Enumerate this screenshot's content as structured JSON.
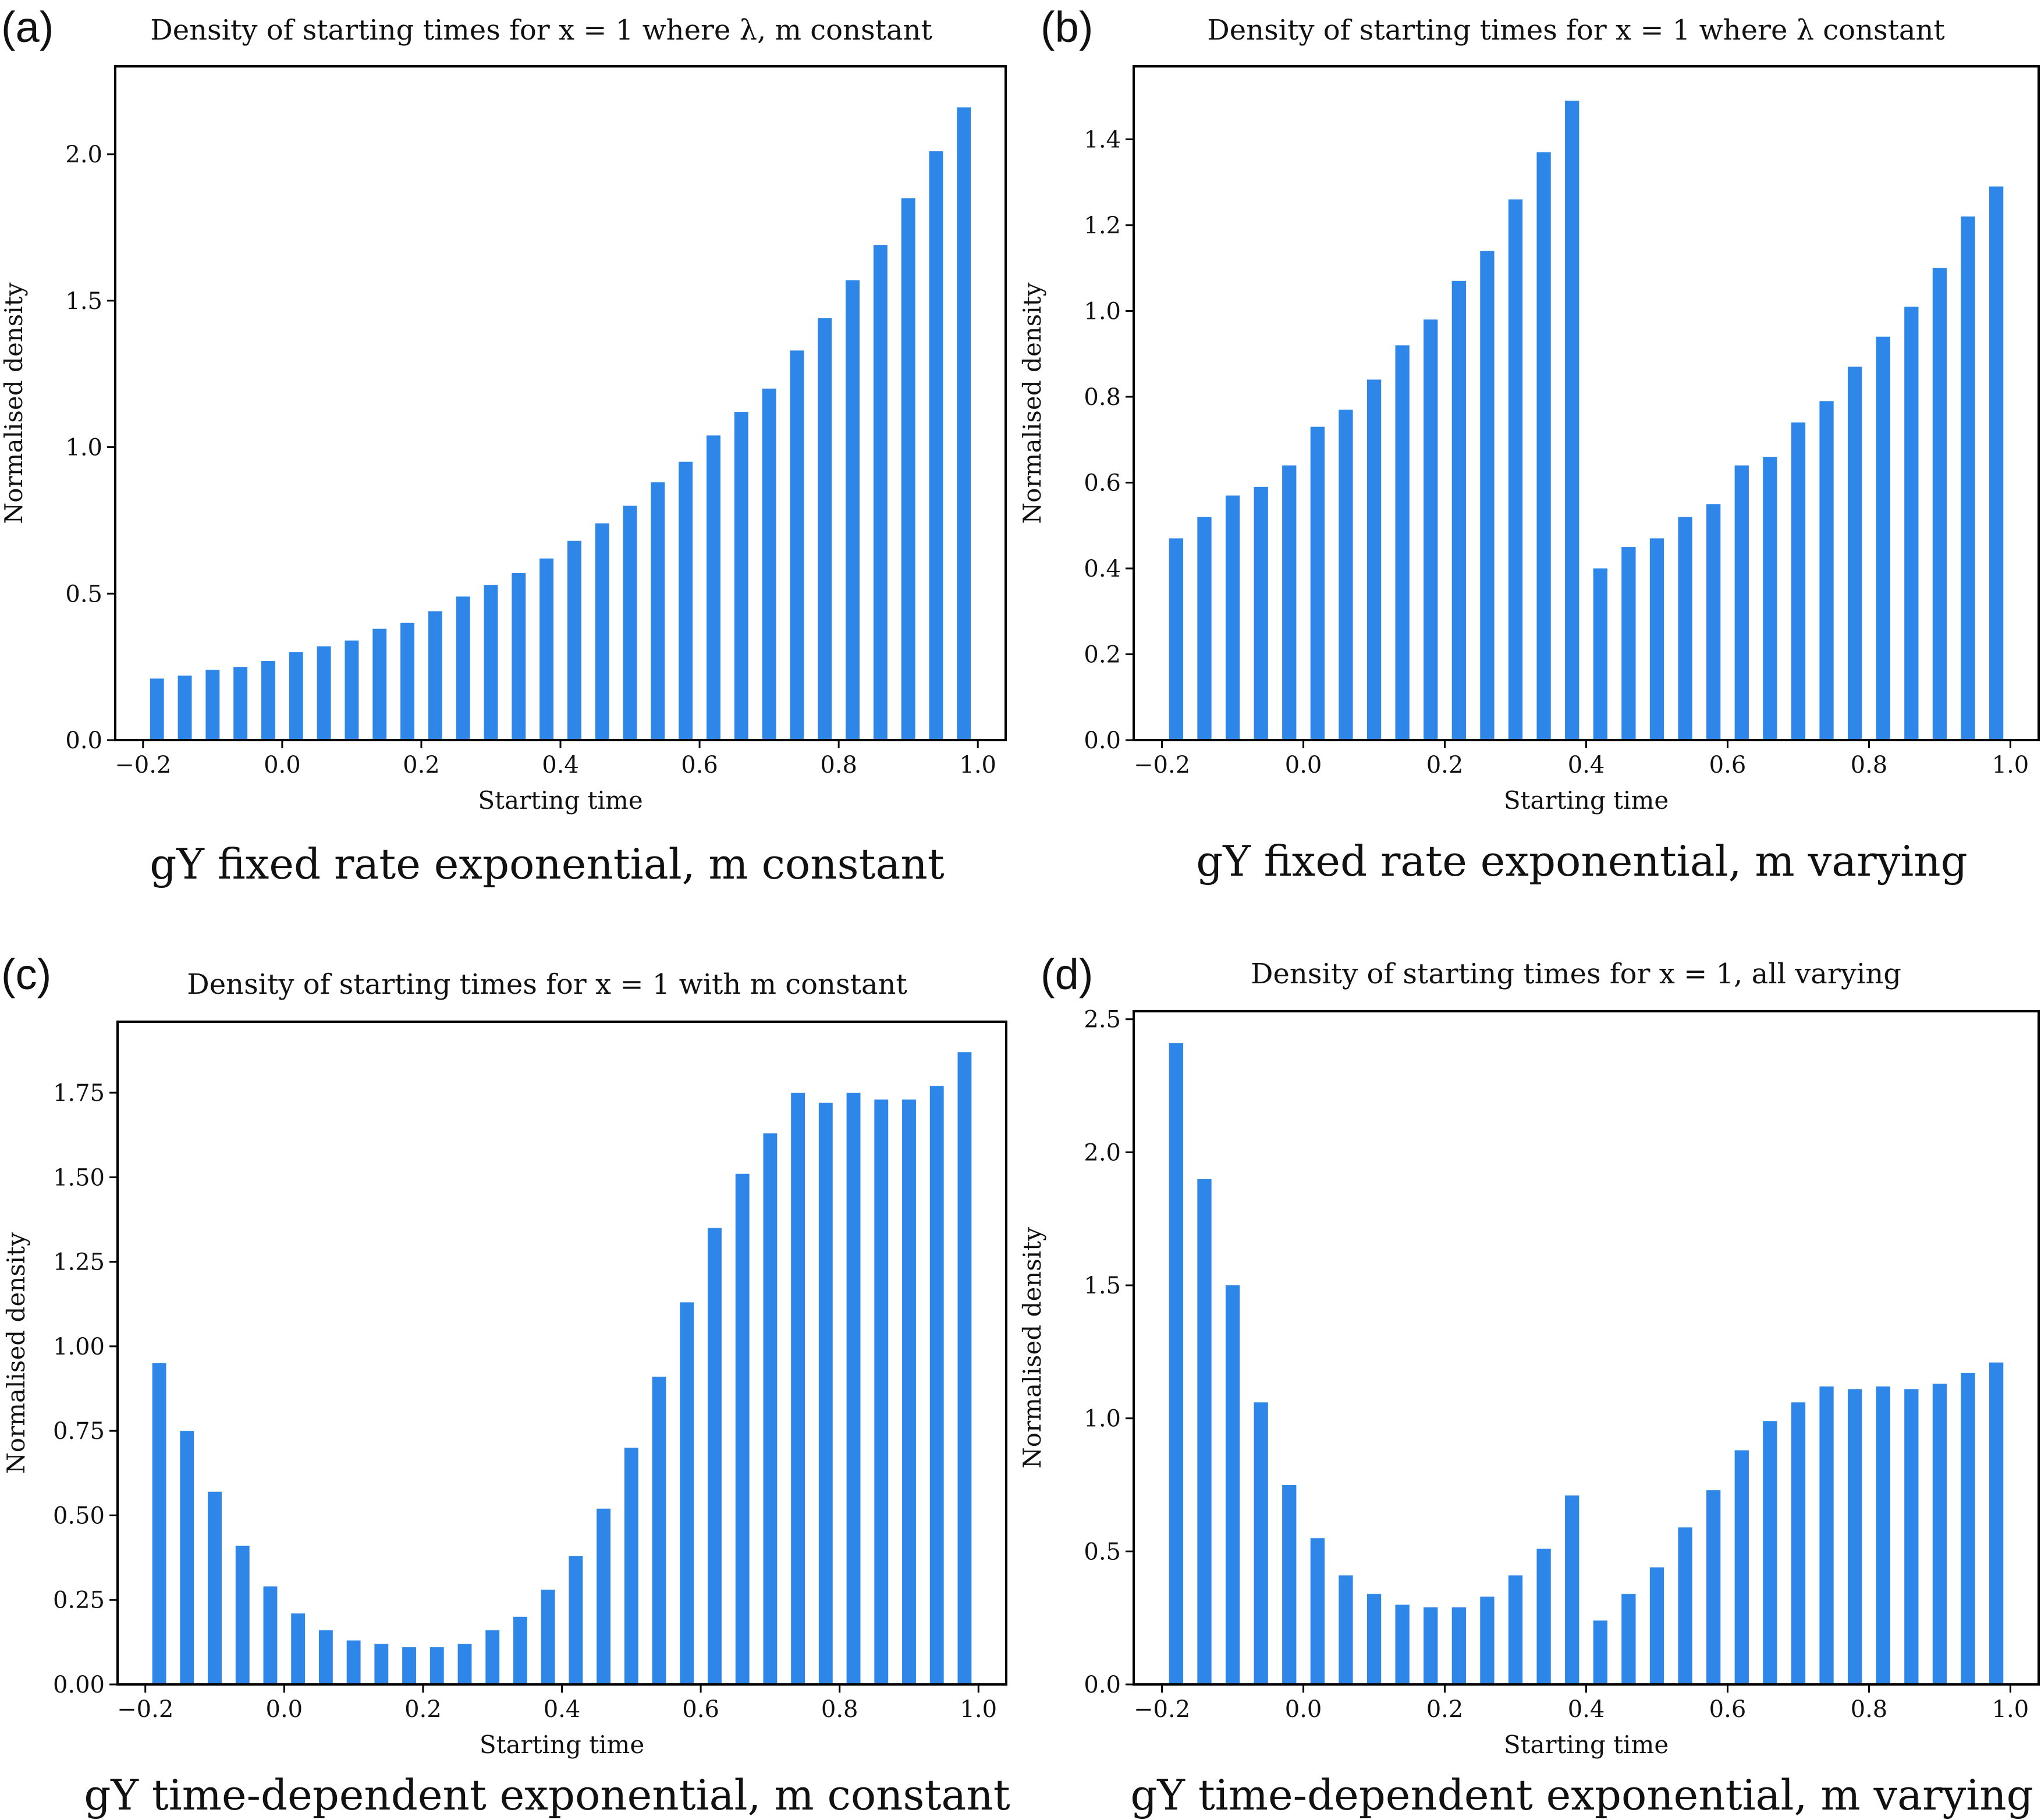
{
  "bar_color": "#2e86e8",
  "chart_data": [
    {
      "type": "bar",
      "panel_label": "(a)",
      "title": "Density of starting times for x = 1 where λ, m constant",
      "caption": "gY fixed rate exponential, m constant",
      "xlabel": "Starting time",
      "ylabel": "Normalised density",
      "xlim": [
        -0.24,
        1.04
      ],
      "ylim": [
        0,
        2.3
      ],
      "xticks": [
        -0.2,
        0.0,
        0.2,
        0.4,
        0.6,
        0.8,
        1.0
      ],
      "xtick_labels": [
        "−0.2",
        "0.0",
        "0.2",
        "0.4",
        "0.6",
        "0.8",
        "1.0"
      ],
      "yticks": [
        0.0,
        0.5,
        1.0,
        1.5,
        2.0
      ],
      "ytick_labels": [
        "0.0",
        "0.5",
        "1.0",
        "1.5",
        "2.0"
      ],
      "x": [
        -0.18,
        -0.14,
        -0.1,
        -0.06,
        -0.02,
        0.02,
        0.06,
        0.1,
        0.14,
        0.18,
        0.22,
        0.26,
        0.3,
        0.34,
        0.38,
        0.42,
        0.46,
        0.5,
        0.54,
        0.58,
        0.62,
        0.66,
        0.7,
        0.74,
        0.78,
        0.82,
        0.86,
        0.9,
        0.94,
        0.98
      ],
      "values": [
        0.21,
        0.22,
        0.24,
        0.25,
        0.27,
        0.3,
        0.32,
        0.34,
        0.38,
        0.4,
        0.44,
        0.49,
        0.53,
        0.57,
        0.62,
        0.68,
        0.74,
        0.8,
        0.88,
        0.95,
        1.04,
        1.12,
        1.2,
        1.33,
        1.44,
        1.57,
        1.69,
        1.85,
        2.01,
        2.16
      ]
    },
    {
      "type": "bar",
      "panel_label": "(b)",
      "title": "Density of starting times for x = 1 where λ constant",
      "caption": "gY fixed rate exponential, m varying",
      "xlabel": "Starting time",
      "ylabel": "Normalised density",
      "xlim": [
        -0.24,
        1.04
      ],
      "ylim": [
        0,
        1.57
      ],
      "xticks": [
        -0.2,
        0.0,
        0.2,
        0.4,
        0.6,
        0.8,
        1.0
      ],
      "xtick_labels": [
        "−0.2",
        "0.0",
        "0.2",
        "0.4",
        "0.6",
        "0.8",
        "1.0"
      ],
      "yticks": [
        0.0,
        0.2,
        0.4,
        0.6,
        0.8,
        1.0,
        1.2,
        1.4
      ],
      "ytick_labels": [
        "0.0",
        "0.2",
        "0.4",
        "0.6",
        "0.8",
        "1.0",
        "1.2",
        "1.4"
      ],
      "x": [
        -0.18,
        -0.14,
        -0.1,
        -0.06,
        -0.02,
        0.02,
        0.06,
        0.1,
        0.14,
        0.18,
        0.22,
        0.26,
        0.3,
        0.34,
        0.38,
        0.42,
        0.46,
        0.5,
        0.54,
        0.58,
        0.62,
        0.66,
        0.7,
        0.74,
        0.78,
        0.82,
        0.86,
        0.9,
        0.94,
        0.98
      ],
      "values": [
        0.47,
        0.52,
        0.57,
        0.59,
        0.64,
        0.73,
        0.77,
        0.84,
        0.92,
        0.98,
        1.07,
        1.14,
        1.26,
        1.37,
        1.49,
        0.4,
        0.45,
        0.47,
        0.52,
        0.55,
        0.64,
        0.66,
        0.74,
        0.79,
        0.87,
        0.94,
        1.01,
        1.1,
        1.22,
        1.29
      ]
    },
    {
      "type": "bar",
      "panel_label": "(c)",
      "title": "Density of starting times for x = 1 with m constant",
      "caption": "gY time-dependent exponential, m constant",
      "xlabel": "Starting time",
      "ylabel": "Normalised density",
      "xlim": [
        -0.24,
        1.04
      ],
      "ylim": [
        0,
        1.96
      ],
      "xticks": [
        -0.2,
        0.0,
        0.2,
        0.4,
        0.6,
        0.8,
        1.0
      ],
      "xtick_labels": [
        "−0.2",
        "0.0",
        "0.2",
        "0.4",
        "0.6",
        "0.8",
        "1.0"
      ],
      "yticks": [
        0.0,
        0.25,
        0.5,
        0.75,
        1.0,
        1.25,
        1.5,
        1.75
      ],
      "ytick_labels": [
        "0.00",
        "0.25",
        "0.50",
        "0.75",
        "1.00",
        "1.25",
        "1.50",
        "1.75"
      ],
      "x": [
        -0.18,
        -0.14,
        -0.1,
        -0.06,
        -0.02,
        0.02,
        0.06,
        0.1,
        0.14,
        0.18,
        0.22,
        0.26,
        0.3,
        0.34,
        0.38,
        0.42,
        0.46,
        0.5,
        0.54,
        0.58,
        0.62,
        0.66,
        0.7,
        0.74,
        0.78,
        0.82,
        0.86,
        0.9,
        0.94,
        0.98
      ],
      "values": [
        0.95,
        0.75,
        0.57,
        0.41,
        0.29,
        0.21,
        0.16,
        0.13,
        0.12,
        0.11,
        0.11,
        0.12,
        0.16,
        0.2,
        0.28,
        0.38,
        0.52,
        0.7,
        0.91,
        1.13,
        1.35,
        1.51,
        1.63,
        1.75,
        1.72,
        1.75,
        1.73,
        1.73,
        1.77,
        1.87
      ]
    },
    {
      "type": "bar",
      "panel_label": "(d)",
      "title": "Density of starting times for x = 1, all varying",
      "caption": "gY time-dependent exponential, m varying",
      "xlabel": "Starting time",
      "ylabel": "Normalised density",
      "xlim": [
        -0.24,
        1.04
      ],
      "ylim": [
        0,
        2.53
      ],
      "xticks": [
        -0.2,
        0.0,
        0.2,
        0.4,
        0.6,
        0.8,
        1.0
      ],
      "xtick_labels": [
        "−0.2",
        "0.0",
        "0.2",
        "0.4",
        "0.6",
        "0.8",
        "1.0"
      ],
      "yticks": [
        0.0,
        0.5,
        1.0,
        1.5,
        2.0,
        2.5
      ],
      "ytick_labels": [
        "0.0",
        "0.5",
        "1.0",
        "1.5",
        "2.0",
        "2.5"
      ],
      "x": [
        -0.18,
        -0.14,
        -0.1,
        -0.06,
        -0.02,
        0.02,
        0.06,
        0.1,
        0.14,
        0.18,
        0.22,
        0.26,
        0.3,
        0.34,
        0.38,
        0.42,
        0.46,
        0.5,
        0.54,
        0.58,
        0.62,
        0.66,
        0.7,
        0.74,
        0.78,
        0.82,
        0.86,
        0.9,
        0.94,
        0.98
      ],
      "values": [
        2.41,
        1.9,
        1.5,
        1.06,
        0.75,
        0.55,
        0.41,
        0.34,
        0.3,
        0.29,
        0.29,
        0.33,
        0.41,
        0.51,
        0.71,
        0.24,
        0.34,
        0.44,
        0.59,
        0.73,
        0.88,
        0.99,
        1.06,
        1.12,
        1.11,
        1.12,
        1.11,
        1.13,
        1.17,
        1.21
      ]
    }
  ]
}
